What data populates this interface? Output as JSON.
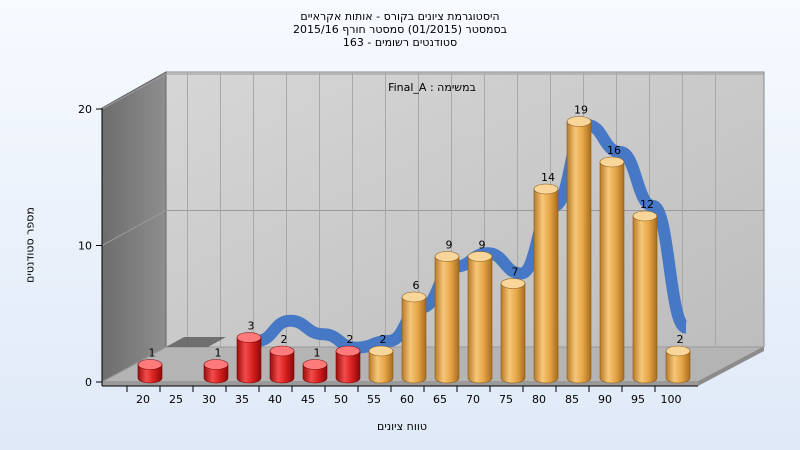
{
  "chart_data": {
    "type": "bar",
    "title_lines": [
      "היסטוגרמת ציונים בקורס - אותות אקראיים",
      "בסמסטר  (01/2015)  סמסטר חורף 2015/16",
      "סטודנטים רשומים - 163"
    ],
    "annotation": "במשימה : Final_A",
    "xlabel": "טווח ציונים",
    "ylabel": "מספר סטודנטים",
    "x_ticks": [
      "20",
      "25",
      "30",
      "35",
      "40",
      "45",
      "50",
      "55",
      "60",
      "65",
      "70",
      "75",
      "80",
      "85",
      "90",
      "95",
      "100"
    ],
    "y_ticks": [
      "0",
      "10",
      "20"
    ],
    "ylim": [
      0,
      20
    ],
    "bars": [
      {
        "x": 20,
        "value": 1,
        "status": "fail"
      },
      {
        "x": 30,
        "value": 1,
        "status": "fail"
      },
      {
        "x": 35,
        "value": 3,
        "status": "fail"
      },
      {
        "x": 40,
        "value": 2,
        "status": "fail"
      },
      {
        "x": 45,
        "value": 1,
        "status": "fail"
      },
      {
        "x": 50,
        "value": 2,
        "status": "fail"
      },
      {
        "x": 55,
        "value": 2,
        "status": "pass"
      },
      {
        "x": 60,
        "value": 6,
        "status": "pass"
      },
      {
        "x": 65,
        "value": 9,
        "status": "pass"
      },
      {
        "x": 70,
        "value": 9,
        "status": "pass"
      },
      {
        "x": 75,
        "value": 7,
        "status": "pass"
      },
      {
        "x": 80,
        "value": 14,
        "status": "pass"
      },
      {
        "x": 85,
        "value": 19,
        "status": "pass"
      },
      {
        "x": 90,
        "value": 16,
        "status": "pass"
      },
      {
        "x": 95,
        "value": 12,
        "status": "pass"
      },
      {
        "x": 100,
        "value": 2,
        "status": "pass"
      }
    ],
    "trend_curve": [
      {
        "x": 35,
        "y": 2
      },
      {
        "x": 40,
        "y": 3.5
      },
      {
        "x": 45,
        "y": 2.5
      },
      {
        "x": 50,
        "y": 1.5
      },
      {
        "x": 55,
        "y": 2
      },
      {
        "x": 60,
        "y": 4.5
      },
      {
        "x": 65,
        "y": 7.5
      },
      {
        "x": 70,
        "y": 8.5
      },
      {
        "x": 75,
        "y": 7
      },
      {
        "x": 80,
        "y": 12
      },
      {
        "x": 85,
        "y": 18
      },
      {
        "x": 90,
        "y": 16
      },
      {
        "x": 95,
        "y": 12
      },
      {
        "x": 100,
        "y": 3
      }
    ],
    "colors": {
      "fail": "#d82020",
      "pass": "#e6a648",
      "trend": "#3f74c5",
      "wall_back": "#c8c8c8",
      "wall_side": "#7c7c7c",
      "floor": "#b0b0b0"
    },
    "grid": true
  }
}
